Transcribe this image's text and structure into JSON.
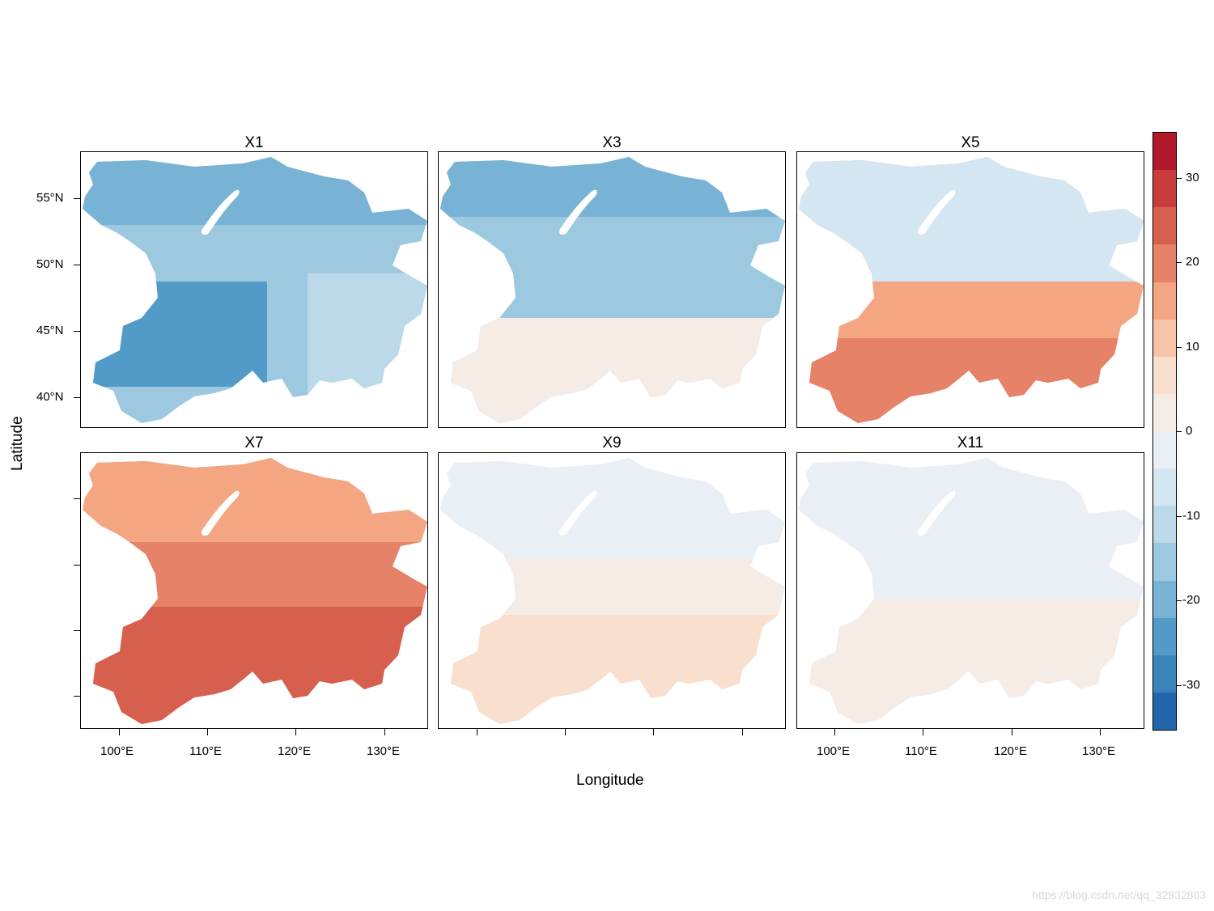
{
  "panels": [
    {
      "title": "X1",
      "value": -17,
      "pattern": "cold"
    },
    {
      "title": "X3",
      "value": -15,
      "pattern": "cold-north"
    },
    {
      "title": "X5",
      "value": 17,
      "pattern": "warm-south"
    },
    {
      "title": "X7",
      "value": 20,
      "pattern": "warm"
    },
    {
      "title": "X9",
      "value": 3,
      "pattern": "neutral"
    },
    {
      "title": "X11",
      "value": -3,
      "pattern": "neutral-blue"
    }
  ],
  "axes": {
    "xlabel": "Longitude",
    "ylabel": "Latitude",
    "x_ticks": [
      "100°E",
      "110°E",
      "120°E",
      "130°E"
    ],
    "y_ticks": [
      "55°N",
      "50°N",
      "45°N",
      "40°N"
    ]
  },
  "colorbar": {
    "range": [
      -35,
      35
    ],
    "ticks": [
      "30",
      "20",
      "10",
      "0",
      "-10",
      "-20",
      "-30"
    ],
    "colors": [
      "#b2182b",
      "#c93c3c",
      "#d6604d",
      "#e58268",
      "#f4a582",
      "#f7c4a8",
      "#f9dfce",
      "#f6ece6",
      "#e9eff4",
      "#d4e6f1",
      "#bcd9ea",
      "#9cc8e0",
      "#78b3d6",
      "#529ac8",
      "#3a84bd",
      "#2166ac"
    ]
  },
  "watermark": "https://blog.csdn.net/qq_32832803"
}
